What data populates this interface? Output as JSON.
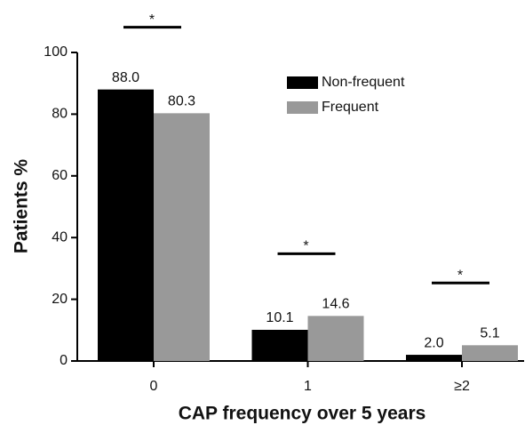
{
  "chart_data": {
    "type": "bar",
    "x_label": "CAP frequency over 5 years",
    "y_label": "Patients %",
    "categories": [
      "0",
      "1",
      "≥2"
    ],
    "series": [
      {
        "name": "Non-frequent",
        "color": "#000000",
        "values": [
          88.0,
          10.1,
          2.0
        ],
        "value_labels": [
          "88.0",
          "10.1",
          "2.0"
        ]
      },
      {
        "name": "Frequent",
        "color": "#999999",
        "values": [
          80.3,
          14.6,
          5.1
        ],
        "value_labels": [
          "80.3",
          "14.6",
          "5.1"
        ]
      }
    ],
    "annotations": [
      "*",
      "*",
      "*"
    ],
    "ylim": [
      0,
      100
    ],
    "yticks": [
      0,
      20,
      40,
      60,
      80,
      100
    ],
    "grid": false,
    "legend": "upper right"
  }
}
